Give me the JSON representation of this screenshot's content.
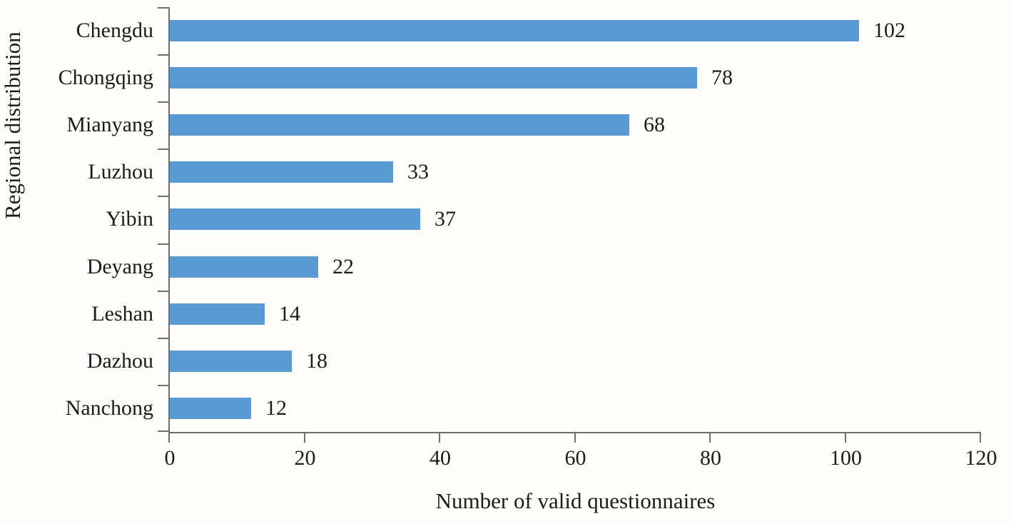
{
  "chart_data": {
    "type": "bar",
    "orientation": "horizontal",
    "title": "",
    "xlabel": "Number of valid questionnaires",
    "ylabel": "Regional distribution",
    "categories": [
      "Chengdu",
      "Chongqing",
      "Mianyang",
      "Luzhou",
      "Yibin",
      "Deyang",
      "Leshan",
      "Dazhou",
      "Nanchong"
    ],
    "values": [
      102,
      78,
      68,
      33,
      37,
      22,
      14,
      18,
      12
    ],
    "data_labels": [
      "102",
      "78",
      "68",
      "33",
      "37",
      "22",
      "14",
      "18",
      "12"
    ],
    "xlim": [
      0,
      120
    ],
    "xticks": [
      0,
      20,
      40,
      60,
      80,
      100,
      120
    ],
    "xtick_labels": [
      "0",
      "20",
      "40",
      "60",
      "80",
      "100",
      "120"
    ],
    "grid": false,
    "legend": false,
    "bar_color": "#5b9bd5",
    "axis_color": "#6e6e6e",
    "text_color": "#1c1c1c",
    "background_color": "#fffefc"
  }
}
